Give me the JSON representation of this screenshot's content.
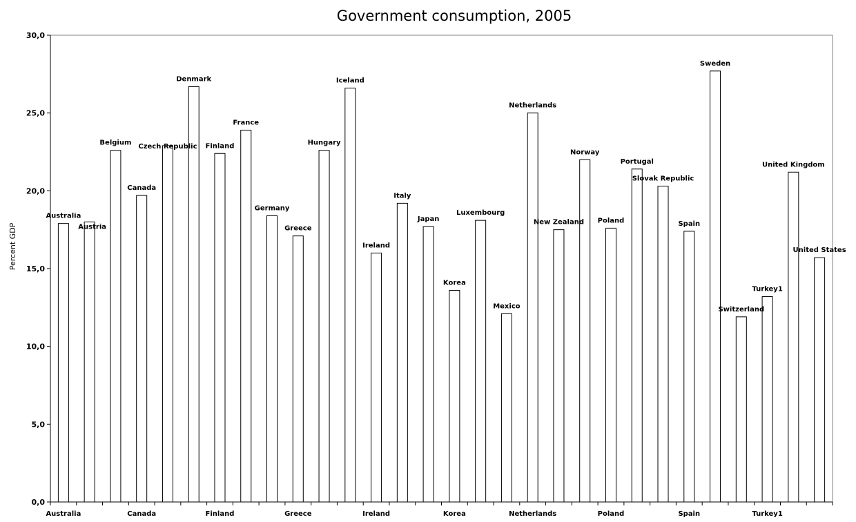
{
  "chart_data": {
    "type": "bar",
    "title": "Government consumption, 2005",
    "xlabel": "",
    "ylabel": "Percent GDP",
    "ylim": [
      0,
      30
    ],
    "y_ticks": [
      "0,0",
      "5,0",
      "10,0",
      "15,0",
      "20,0",
      "25,0",
      "30,0"
    ],
    "grid": false,
    "legend": "none",
    "categories": [
      "Australia",
      "Austria",
      "Belgium",
      "Canada",
      "Czech Republic",
      "Denmark",
      "Finland",
      "France",
      "Germany",
      "Greece",
      "Hungary",
      "Iceland",
      "Ireland",
      "Italy",
      "Japan",
      "Korea",
      "Luxembourg",
      "Mexico",
      "Netherlands",
      "New Zealand",
      "Norway",
      "Poland",
      "Portugal",
      "Slovak Republic",
      "Spain",
      "Sweden",
      "Switzerland",
      "Turkey1",
      "United Kingdom",
      "United States"
    ],
    "values": [
      17.9,
      18.0,
      22.6,
      19.7,
      22.9,
      26.7,
      22.4,
      23.9,
      18.4,
      17.1,
      22.6,
      26.6,
      16.0,
      19.2,
      17.7,
      13.6,
      18.1,
      12.1,
      25.0,
      17.5,
      22.0,
      17.6,
      21.4,
      20.3,
      17.4,
      27.7,
      11.9,
      13.2,
      21.2,
      15.7
    ],
    "x_tick_labels": [
      "Australia",
      "Canada",
      "Finland",
      "Greece",
      "Ireland",
      "Korea",
      "Netherlands",
      "Poland",
      "Spain",
      "Turkey1"
    ]
  }
}
